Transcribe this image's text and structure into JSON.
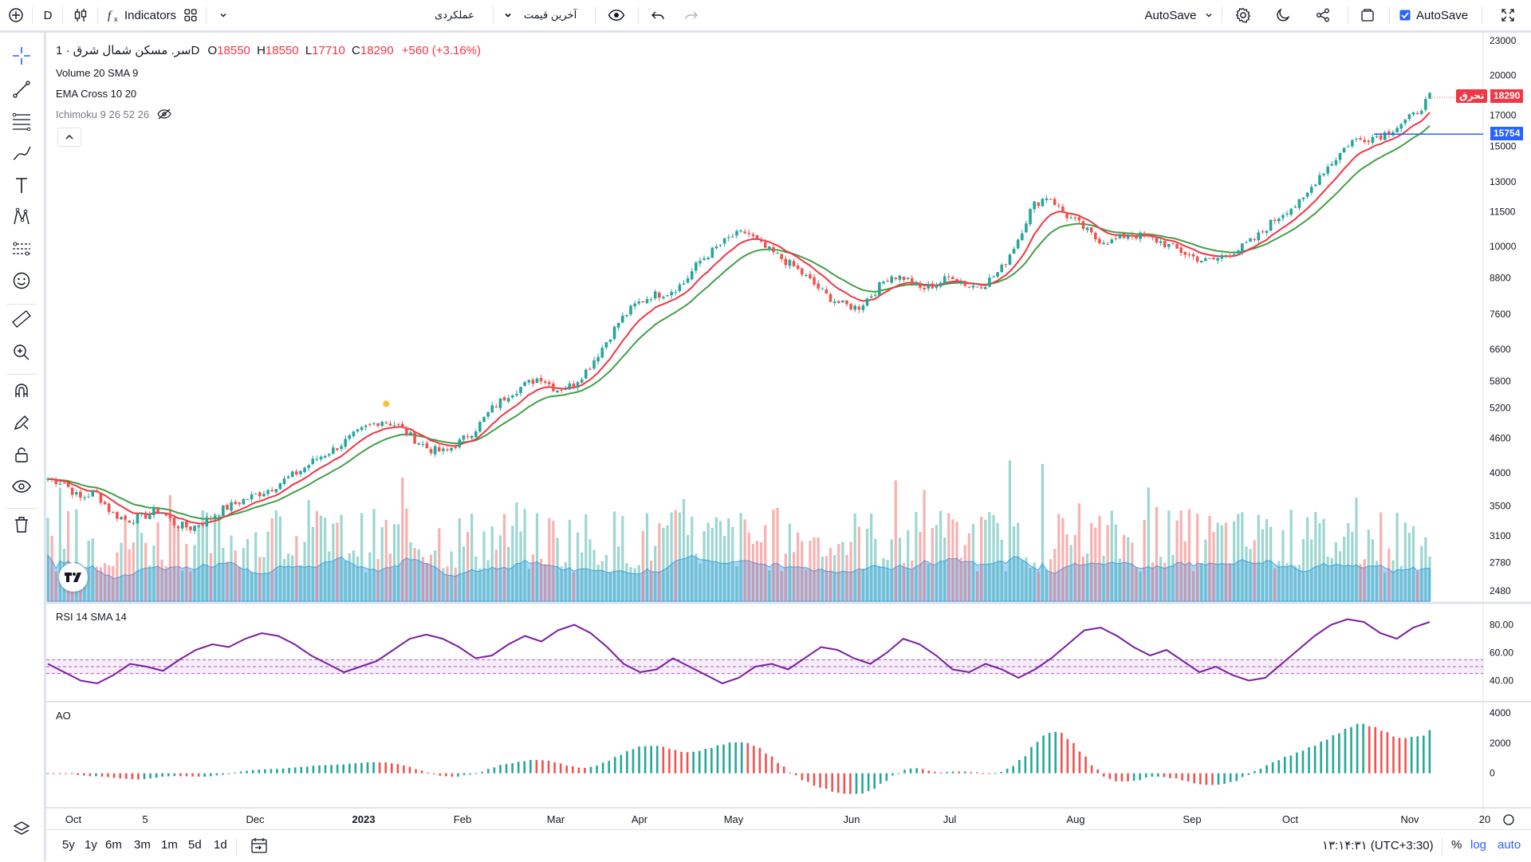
{
  "toolbar": {
    "interval": "D",
    "indicators_label": "Indicators",
    "performance_label": "عملکردی",
    "price_type_label": "آخرین قیمت",
    "autosave_label": "AutoSave",
    "autosave_check_label": "AutoSave"
  },
  "legend": {
    "symbol": "سر. مسکن شمال شرق · 1D",
    "o_label": "O",
    "o_value": "18550",
    "h_label": "H",
    "h_value": "18550",
    "l_label": "L",
    "l_value": "17710",
    "c_label": "C",
    "c_value": "18290",
    "change": "+560 (+3.16%)",
    "volume": "Volume 20 SMA 9",
    "ema": "EMA Cross 10 20",
    "ichimoku": "Ichimoku 9 26 52 26"
  },
  "panes": {
    "rsi_label": "RSI 14 SMA 14",
    "ao_label": "AO"
  },
  "price_axis": {
    "ticks": [
      "23000",
      "20000",
      "17000",
      "15000",
      "13000",
      "11500",
      "10000",
      "8800",
      "7600",
      "6600",
      "5800",
      "5200",
      "4600",
      "4000",
      "3500",
      "3100",
      "2780",
      "2480"
    ],
    "last_price": "18290",
    "last_price_tag": "تحرق",
    "line_price": "15754"
  },
  "rsi_axis": {
    "ticks": [
      "80.00",
      "60.00",
      "40.00"
    ]
  },
  "ao_axis": {
    "ticks": [
      "4000",
      "2000",
      "0"
    ]
  },
  "time_axis": {
    "labels": [
      "Oct",
      "5",
      "Dec",
      "2023",
      "Feb",
      "Mar",
      "Apr",
      "May",
      "Jun",
      "Jul",
      "Aug",
      "Sep",
      "Oct",
      "Nov",
      "20"
    ]
  },
  "bottombar": {
    "ranges": [
      "5y",
      "1y",
      "6m",
      "3m",
      "1m",
      "5d",
      "1d"
    ],
    "clock": "۱۳:۱۴:۳۱ (UTC+3:30)",
    "percent": "%",
    "log": "log",
    "auto": "auto"
  },
  "colors": {
    "up": "#26a69a",
    "down": "#ef5350",
    "ema_fast": "#f23645",
    "ema_slow": "#43a047",
    "rsi": "#7b1fa2",
    "volume_ma": "#64b5f6",
    "accent": "#2962ff"
  },
  "chart_data": {
    "type": "candlestick",
    "series_close_approx": [
      3900,
      3850,
      3600,
      3700,
      3400,
      3300,
      3350,
      3450,
      3250,
      3200,
      3300,
      3450,
      3550,
      3650,
      3750,
      3900,
      4050,
      4250,
      4400,
      4600,
      4800,
      4950,
      4850,
      4600,
      4400,
      4350,
      4550,
      4800,
      5200,
      5500,
      5700,
      5900,
      5600,
      5700,
      6100,
      6700,
      7400,
      7900,
      8200,
      8300,
      8600,
      9400,
      9900,
      10400,
      10600,
      10000,
      9600,
      9200,
      8700,
      8200,
      7900,
      7800,
      8300,
      8900,
      8800,
      8400,
      8600,
      8900,
      8500,
      8600,
      9100,
      10200,
      11800,
      12300,
      11400,
      10900,
      10300,
      10200,
      10500,
      10400,
      10200,
      9900,
      9600,
      9400,
      9600,
      9900,
      10300,
      11000,
      11600,
      12000,
      13300,
      14200,
      15300,
      15500,
      15700,
      16300,
      17000,
      18290
    ],
    "rsi_approx": [
      52,
      46,
      40,
      38,
      44,
      52,
      50,
      47,
      55,
      62,
      66,
      64,
      70,
      74,
      72,
      66,
      58,
      52,
      46,
      50,
      54,
      62,
      70,
      73,
      70,
      64,
      56,
      58,
      66,
      72,
      68,
      76,
      80,
      74,
      64,
      52,
      46,
      48,
      56,
      50,
      44,
      38,
      42,
      50,
      52,
      48,
      56,
      64,
      62,
      56,
      52,
      60,
      70,
      66,
      58,
      48,
      46,
      52,
      48,
      42,
      48,
      56,
      66,
      76,
      78,
      72,
      64,
      58,
      62,
      54,
      46,
      50,
      44,
      40,
      42,
      52,
      62,
      72,
      80,
      84,
      82,
      74,
      70,
      78,
      82
    ]
  }
}
